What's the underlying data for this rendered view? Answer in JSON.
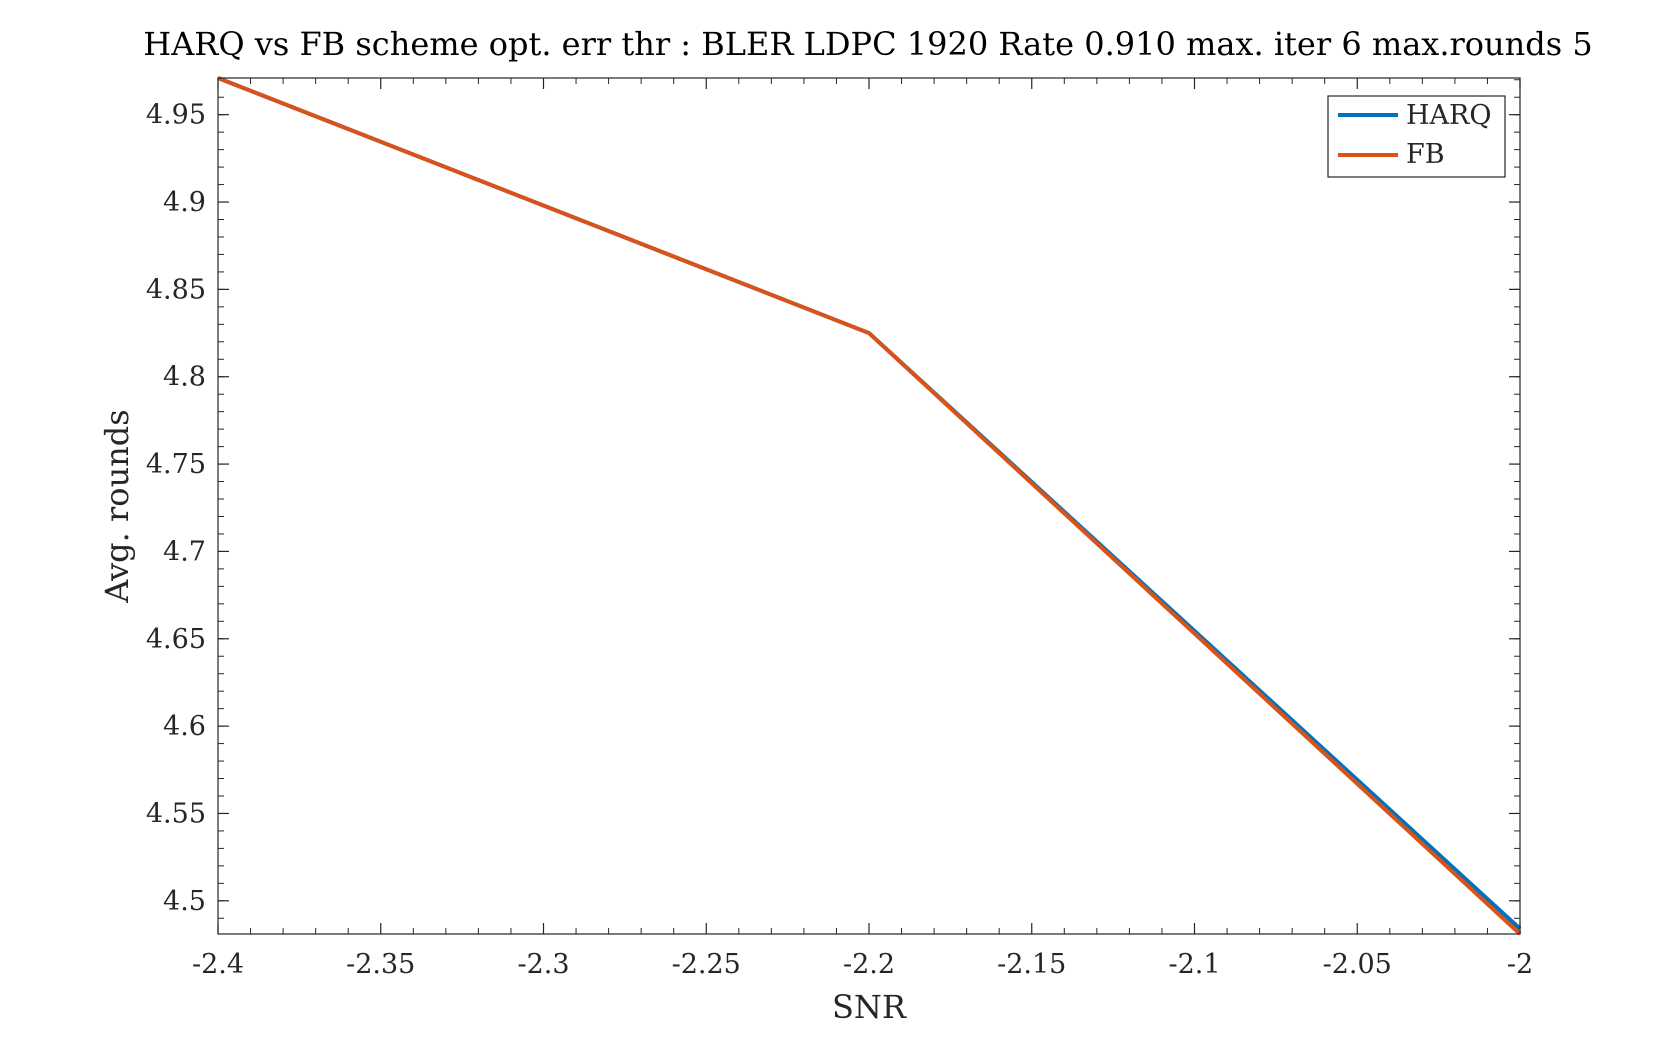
{
  "chart_data": {
    "type": "line",
    "title": "HARQ vs FB scheme opt. err thr : BLER LDPC 1920 Rate 0.910 max. iter 6 max.rounds 5",
    "xlabel": "SNR",
    "ylabel": "Avg. rounds",
    "xlim": [
      -2.4,
      -2.0
    ],
    "ylim": [
      4.481,
      4.971
    ],
    "xticks": [
      -2.4,
      -2.35,
      -2.3,
      -2.25,
      -2.2,
      -2.15,
      -2.1,
      -2.05,
      -2.0
    ],
    "xtick_labels": [
      "-2.4",
      "-2.35",
      "-2.3",
      "-2.25",
      "-2.2",
      "-2.15",
      "-2.1",
      "-2.05",
      "-2"
    ],
    "yticks": [
      4.5,
      4.55,
      4.6,
      4.65,
      4.7,
      4.75,
      4.8,
      4.85,
      4.9,
      4.95
    ],
    "ytick_labels": [
      "4.5",
      "4.55",
      "4.6",
      "4.65",
      "4.7",
      "4.75",
      "4.8",
      "4.85",
      "4.9",
      "4.95"
    ],
    "grid": false,
    "legend_position": "top-right",
    "x": [
      -2.4,
      -2.2,
      -2.0
    ],
    "series": [
      {
        "name": "HARQ",
        "values": [
          4.971,
          4.825,
          4.484
        ],
        "color": "#0072BD"
      },
      {
        "name": "FB",
        "values": [
          4.971,
          4.825,
          4.481
        ],
        "color": "#D95319"
      }
    ]
  }
}
